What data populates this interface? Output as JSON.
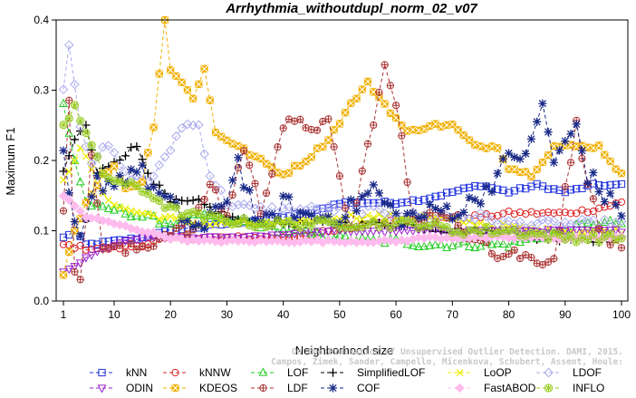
{
  "chart_data": {
    "type": "line",
    "title": "Arrhythmia_withoutdupl_norm_02_v07",
    "xlabel": "Neighborhood size",
    "ylabel": "Maximum F1",
    "xlim": [
      1,
      100
    ],
    "ylim": [
      0,
      0.4
    ],
    "x_ticks": [
      1,
      10,
      20,
      30,
      40,
      50,
      60,
      70,
      80,
      90,
      100
    ],
    "y_ticks": [
      0.0,
      0.1,
      0.2,
      0.3,
      0.4
    ],
    "y_tick_labels": [
      "0.0",
      "0.1",
      "0.2",
      "0.3",
      "0.4"
    ],
    "grid": false,
    "legend_position": "bottom",
    "watermark": [
      "Campos, Zimek, Sander, Campello, Micenkova, Schubert, Assent, Houle:",
      "On the Evaluation of Unsupervised Outlier Detection. DAMI, 2015."
    ],
    "series": [
      {
        "name": "kNN",
        "color": "#2233dd",
        "marker": "square",
        "key": [
          [
            1,
            0.09
          ],
          [
            3,
            0.1
          ],
          [
            5,
            0.08
          ],
          [
            10,
            0.085
          ],
          [
            15,
            0.09
          ],
          [
            20,
            0.1
          ],
          [
            25,
            0.105
          ],
          [
            30,
            0.11
          ],
          [
            35,
            0.115
          ],
          [
            40,
            0.12
          ],
          [
            45,
            0.125
          ],
          [
            50,
            0.14
          ],
          [
            55,
            0.14
          ],
          [
            60,
            0.14
          ],
          [
            65,
            0.145
          ],
          [
            70,
            0.155
          ],
          [
            75,
            0.165
          ],
          [
            80,
            0.155
          ],
          [
            85,
            0.165
          ],
          [
            90,
            0.155
          ],
          [
            95,
            0.165
          ],
          [
            100,
            0.165
          ]
        ]
      },
      {
        "name": "kNNW",
        "color": "#dd2222",
        "marker": "circle",
        "key": [
          [
            1,
            0.08
          ],
          [
            5,
            0.075
          ],
          [
            10,
            0.075
          ],
          [
            15,
            0.08
          ],
          [
            20,
            0.09
          ],
          [
            25,
            0.09
          ],
          [
            30,
            0.09
          ],
          [
            35,
            0.09
          ],
          [
            40,
            0.09
          ],
          [
            45,
            0.095
          ],
          [
            50,
            0.1
          ],
          [
            55,
            0.11
          ],
          [
            60,
            0.115
          ],
          [
            65,
            0.12
          ],
          [
            70,
            0.12
          ],
          [
            75,
            0.12
          ],
          [
            80,
            0.125
          ],
          [
            85,
            0.125
          ],
          [
            90,
            0.125
          ],
          [
            95,
            0.13
          ],
          [
            100,
            0.14
          ]
        ]
      },
      {
        "name": "LOF",
        "color": "#22cc22",
        "marker": "triangle",
        "key": [
          [
            1,
            0.28
          ],
          [
            3,
            0.2
          ],
          [
            5,
            0.14
          ],
          [
            8,
            0.13
          ],
          [
            10,
            0.13
          ],
          [
            15,
            0.12
          ],
          [
            20,
            0.11
          ],
          [
            25,
            0.12
          ],
          [
            30,
            0.115
          ],
          [
            35,
            0.11
          ],
          [
            40,
            0.1
          ],
          [
            45,
            0.095
          ],
          [
            50,
            0.09
          ],
          [
            55,
            0.085
          ],
          [
            60,
            0.085
          ],
          [
            65,
            0.08
          ],
          [
            70,
            0.08
          ],
          [
            75,
            0.08
          ],
          [
            80,
            0.08
          ],
          [
            85,
            0.09
          ],
          [
            90,
            0.1
          ],
          [
            95,
            0.11
          ],
          [
            100,
            0.11
          ]
        ]
      },
      {
        "name": "SimplifiedLOF",
        "color": "#000000",
        "marker": "plus",
        "key": [
          [
            1,
            0.18
          ],
          [
            3,
            0.23
          ],
          [
            5,
            0.25
          ],
          [
            7,
            0.18
          ],
          [
            10,
            0.2
          ],
          [
            14,
            0.22
          ],
          [
            17,
            0.17
          ],
          [
            20,
            0.14
          ],
          [
            25,
            0.14
          ],
          [
            30,
            0.12
          ],
          [
            35,
            0.11
          ],
          [
            40,
            0.11
          ],
          [
            45,
            0.11
          ],
          [
            50,
            0.11
          ],
          [
            55,
            0.11
          ],
          [
            60,
            0.11
          ],
          [
            65,
            0.105
          ],
          [
            70,
            0.1
          ],
          [
            75,
            0.1
          ],
          [
            80,
            0.095
          ],
          [
            85,
            0.09
          ],
          [
            90,
            0.09
          ],
          [
            95,
            0.088
          ],
          [
            100,
            0.088
          ]
        ]
      },
      {
        "name": "LoOP",
        "color": "#eeee00",
        "marker": "cross",
        "key": [
          [
            1,
            0.17
          ],
          [
            4,
            0.22
          ],
          [
            8,
            0.15
          ],
          [
            12,
            0.13
          ],
          [
            18,
            0.12
          ],
          [
            25,
            0.11
          ],
          [
            30,
            0.11
          ],
          [
            40,
            0.11
          ],
          [
            50,
            0.12
          ],
          [
            55,
            0.12
          ],
          [
            60,
            0.12
          ],
          [
            65,
            0.12
          ],
          [
            70,
            0.115
          ],
          [
            75,
            0.11
          ],
          [
            80,
            0.105
          ],
          [
            85,
            0.1
          ],
          [
            90,
            0.1
          ],
          [
            95,
            0.1
          ],
          [
            100,
            0.1
          ]
        ]
      },
      {
        "name": "LDOF",
        "color": "#aaaaee",
        "marker": "diamond",
        "key": [
          [
            1,
            0.3
          ],
          [
            2,
            0.37
          ],
          [
            4,
            0.25
          ],
          [
            6,
            0.2
          ],
          [
            9,
            0.22
          ],
          [
            12,
            0.18
          ],
          [
            16,
            0.17
          ],
          [
            19,
            0.2
          ],
          [
            22,
            0.25
          ],
          [
            25,
            0.25
          ],
          [
            27,
            0.18
          ],
          [
            30,
            0.14
          ],
          [
            35,
            0.13
          ],
          [
            40,
            0.13
          ],
          [
            45,
            0.13
          ],
          [
            50,
            0.13
          ],
          [
            55,
            0.13
          ],
          [
            60,
            0.125
          ],
          [
            65,
            0.12
          ],
          [
            70,
            0.12
          ],
          [
            75,
            0.12
          ],
          [
            80,
            0.11
          ],
          [
            85,
            0.11
          ],
          [
            90,
            0.11
          ],
          [
            95,
            0.11
          ],
          [
            100,
            0.11
          ]
        ]
      },
      {
        "name": "ODIN",
        "color": "#9922cc",
        "marker": "triangle-down",
        "key": [
          [
            1,
            0.04
          ],
          [
            3,
            0.05
          ],
          [
            5,
            0.06
          ],
          [
            7,
            0.07
          ],
          [
            10,
            0.08
          ],
          [
            15,
            0.09
          ],
          [
            20,
            0.09
          ],
          [
            25,
            0.09
          ],
          [
            30,
            0.09
          ],
          [
            40,
            0.095
          ],
          [
            50,
            0.1
          ],
          [
            60,
            0.1
          ],
          [
            70,
            0.1
          ],
          [
            80,
            0.1
          ],
          [
            90,
            0.1
          ],
          [
            100,
            0.1
          ]
        ]
      },
      {
        "name": "KDEOS",
        "color": "#f0b000",
        "marker": "square-x",
        "key": [
          [
            1,
            0.04
          ],
          [
            3,
            0.1
          ],
          [
            5,
            0.14
          ],
          [
            8,
            0.18
          ],
          [
            10,
            0.19
          ],
          [
            12,
            0.16
          ],
          [
            15,
            0.17
          ],
          [
            17,
            0.25
          ],
          [
            19,
            0.4
          ],
          [
            20,
            0.33
          ],
          [
            24,
            0.29
          ],
          [
            26,
            0.33
          ],
          [
            28,
            0.24
          ],
          [
            32,
            0.22
          ],
          [
            36,
            0.2
          ],
          [
            40,
            0.18
          ],
          [
            44,
            0.2
          ],
          [
            48,
            0.23
          ],
          [
            52,
            0.28
          ],
          [
            55,
            0.31
          ],
          [
            58,
            0.28
          ],
          [
            62,
            0.24
          ],
          [
            66,
            0.25
          ],
          [
            70,
            0.25
          ],
          [
            74,
            0.22
          ],
          [
            78,
            0.22
          ],
          [
            80,
            0.19
          ],
          [
            84,
            0.18
          ],
          [
            88,
            0.22
          ],
          [
            92,
            0.22
          ],
          [
            96,
            0.22
          ],
          [
            98,
            0.2
          ],
          [
            100,
            0.18
          ]
        ]
      },
      {
        "name": "LDF",
        "color": "#aa3333",
        "marker": "circle-plus",
        "key": [
          [
            1,
            0.12
          ],
          [
            2,
            0.29
          ],
          [
            3,
            0.05
          ],
          [
            4,
            0.04
          ],
          [
            6,
            0.2
          ],
          [
            8,
            0.08
          ],
          [
            12,
            0.07
          ],
          [
            16,
            0.08
          ],
          [
            20,
            0.1
          ],
          [
            24,
            0.1
          ],
          [
            27,
            0.17
          ],
          [
            30,
            0.12
          ],
          [
            33,
            0.22
          ],
          [
            36,
            0.13
          ],
          [
            40,
            0.25
          ],
          [
            44,
            0.25
          ],
          [
            48,
            0.25
          ],
          [
            52,
            0.1
          ],
          [
            56,
            0.26
          ],
          [
            58,
            0.33
          ],
          [
            60,
            0.28
          ],
          [
            63,
            0.12
          ],
          [
            68,
            0.12
          ],
          [
            72,
            0.1
          ],
          [
            76,
            0.09
          ],
          [
            78,
            0.06
          ],
          [
            80,
            0.07
          ],
          [
            84,
            0.06
          ],
          [
            88,
            0.06
          ],
          [
            92,
            0.25
          ],
          [
            96,
            0.1
          ],
          [
            100,
            0.07
          ]
        ]
      },
      {
        "name": "COF",
        "color": "#1a2a88",
        "marker": "star",
        "key": [
          [
            1,
            0.2
          ],
          [
            2,
            0.14
          ],
          [
            4,
            0.08
          ],
          [
            7,
            0.17
          ],
          [
            10,
            0.17
          ],
          [
            14,
            0.19
          ],
          [
            18,
            0.15
          ],
          [
            22,
            0.12
          ],
          [
            26,
            0.1
          ],
          [
            30,
            0.15
          ],
          [
            32,
            0.2
          ],
          [
            36,
            0.1
          ],
          [
            40,
            0.14
          ],
          [
            44,
            0.12
          ],
          [
            48,
            0.12
          ],
          [
            52,
            0.13
          ],
          [
            56,
            0.16
          ],
          [
            60,
            0.12
          ],
          [
            64,
            0.12
          ],
          [
            68,
            0.13
          ],
          [
            72,
            0.13
          ],
          [
            76,
            0.16
          ],
          [
            80,
            0.2
          ],
          [
            84,
            0.22
          ],
          [
            86,
            0.28
          ],
          [
            88,
            0.2
          ],
          [
            90,
            0.22
          ],
          [
            92,
            0.25
          ],
          [
            94,
            0.18
          ],
          [
            96,
            0.16
          ],
          [
            98,
            0.14
          ],
          [
            100,
            0.13
          ]
        ]
      },
      {
        "name": "FastABOD",
        "color": "#ffbbee",
        "marker": "diamond-filled",
        "key": [
          [
            1,
            0.15
          ],
          [
            5,
            0.12
          ],
          [
            10,
            0.11
          ],
          [
            15,
            0.1
          ],
          [
            20,
            0.09
          ],
          [
            25,
            0.085
          ],
          [
            30,
            0.085
          ],
          [
            35,
            0.085
          ],
          [
            40,
            0.085
          ],
          [
            45,
            0.085
          ],
          [
            50,
            0.085
          ],
          [
            55,
            0.085
          ],
          [
            60,
            0.085
          ],
          [
            65,
            0.09
          ],
          [
            70,
            0.09
          ],
          [
            75,
            0.09
          ],
          [
            80,
            0.09
          ],
          [
            85,
            0.09
          ],
          [
            90,
            0.09
          ],
          [
            95,
            0.09
          ],
          [
            100,
            0.09
          ]
        ]
      },
      {
        "name": "INFLO",
        "color": "#99cc22",
        "marker": "star-circle",
        "key": [
          [
            1,
            0.25
          ],
          [
            3,
            0.28
          ],
          [
            5,
            0.24
          ],
          [
            8,
            0.18
          ],
          [
            11,
            0.17
          ],
          [
            14,
            0.16
          ],
          [
            17,
            0.15
          ],
          [
            20,
            0.13
          ],
          [
            25,
            0.12
          ],
          [
            30,
            0.115
          ],
          [
            35,
            0.11
          ],
          [
            40,
            0.11
          ],
          [
            45,
            0.11
          ],
          [
            50,
            0.11
          ],
          [
            55,
            0.11
          ],
          [
            60,
            0.11
          ],
          [
            65,
            0.11
          ],
          [
            70,
            0.1
          ],
          [
            75,
            0.1
          ],
          [
            80,
            0.1
          ],
          [
            85,
            0.095
          ],
          [
            90,
            0.09
          ],
          [
            95,
            0.09
          ],
          [
            100,
            0.09
          ]
        ]
      }
    ]
  }
}
